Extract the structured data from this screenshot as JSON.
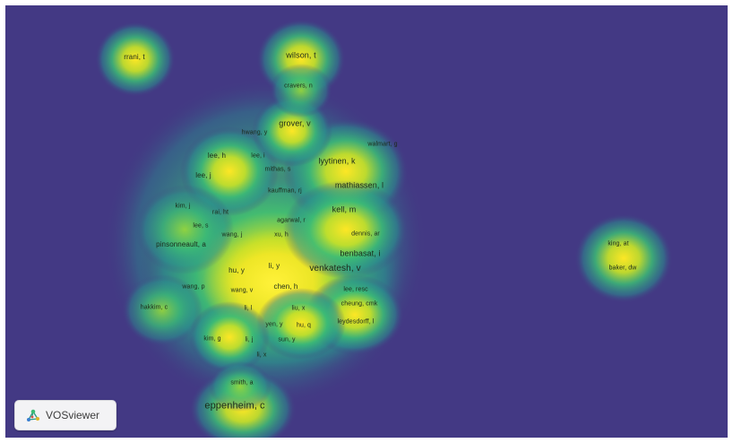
{
  "map": {
    "background_color": "#433984",
    "density_colors": [
      "#433984",
      "#2b8f8d",
      "#3cbc75",
      "#b9de28",
      "#fde725"
    ]
  },
  "labels": [
    {
      "text": "rrani, t",
      "size": 2
    },
    {
      "text": "wilson, t",
      "size": 3
    },
    {
      "text": "cravers, n",
      "size": 1
    },
    {
      "text": "grover, v",
      "size": 3
    },
    {
      "text": "hwang, y",
      "size": 1
    },
    {
      "text": "walmart, g",
      "size": 1
    },
    {
      "text": "lee, h",
      "size": 2
    },
    {
      "text": "lee, i",
      "size": 1
    },
    {
      "text": "mithas, s",
      "size": 1
    },
    {
      "text": "lyytinen, k",
      "size": 3
    },
    {
      "text": "lee, j",
      "size": 2
    },
    {
      "text": "kauffman, rj",
      "size": 1
    },
    {
      "text": "mathiassen, l",
      "size": 3
    },
    {
      "text": "kim, j",
      "size": 1
    },
    {
      "text": "rai, ht",
      "size": 1
    },
    {
      "text": "kell, m",
      "size": 3
    },
    {
      "text": "lee, s",
      "size": 1
    },
    {
      "text": "agarwal, r",
      "size": 1
    },
    {
      "text": "wang, j",
      "size": 1
    },
    {
      "text": "xu, h",
      "size": 1
    },
    {
      "text": "dennis, ar",
      "size": 1
    },
    {
      "text": "pinsonneault, a",
      "size": 1
    },
    {
      "text": "benbasat, i",
      "size": 3
    },
    {
      "text": "hu, y",
      "size": 2
    },
    {
      "text": "li, y",
      "size": 2
    },
    {
      "text": "venkatesh, v",
      "size": 4
    },
    {
      "text": "wang, p",
      "size": 1
    },
    {
      "text": "wang, v",
      "size": 1
    },
    {
      "text": "chen, h",
      "size": 2
    },
    {
      "text": "lee, resc",
      "size": 1
    },
    {
      "text": "cheung, cmk",
      "size": 1
    },
    {
      "text": "hakkim, c",
      "size": 1
    },
    {
      "text": "li, l",
      "size": 1
    },
    {
      "text": "liu, x",
      "size": 1
    },
    {
      "text": "leydesdorff, l",
      "size": 1
    },
    {
      "text": "yen, y",
      "size": 1
    },
    {
      "text": "hu, q",
      "size": 1
    },
    {
      "text": "kim, g",
      "size": 1
    },
    {
      "text": "li, j",
      "size": 1
    },
    {
      "text": "sun, y",
      "size": 1
    },
    {
      "text": "li, x",
      "size": 1
    },
    {
      "text": "smith, a",
      "size": 1
    },
    {
      "text": "eppenheim, c",
      "size": 5
    },
    {
      "text": "king, at",
      "size": 1
    },
    {
      "text": "baker, dw",
      "size": 1
    }
  ],
  "brand": {
    "name": "VOSviewer",
    "icon": "vosviewer-logo-icon"
  }
}
